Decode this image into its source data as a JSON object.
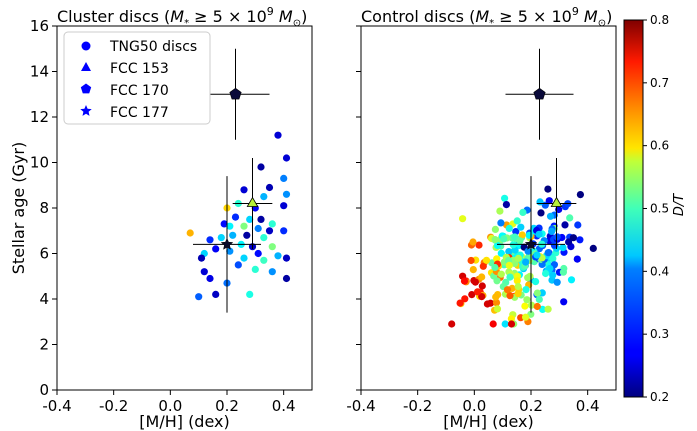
{
  "chart_data": [
    {
      "type": "scatter",
      "title_text": "Cluster discs (",
      "title_math": "M",
      "title_sub": "*",
      "title_rest": " ≥ 5 × 10",
      "title_exp": "9",
      "title_unit": " M",
      "title_unit_sub": "⊙",
      "title_close": ")",
      "xlabel": "[M/H] (dex)",
      "ylabel": "Stellar age (Gyr)",
      "xlim": [
        -0.4,
        0.5
      ],
      "ylim": [
        0,
        16
      ],
      "xticks": [
        "-0.4",
        "-0.2",
        "0.0",
        "0.2",
        "0.4"
      ],
      "xtick_values": [
        -0.4,
        -0.2,
        0.0,
        0.2,
        0.4
      ],
      "yticks": [
        "0",
        "2",
        "4",
        "6",
        "8",
        "10",
        "12",
        "14",
        "16"
      ],
      "ytick_values": [
        0,
        2,
        4,
        6,
        8,
        10,
        12,
        14,
        16
      ],
      "legend": {
        "placement": "top-left",
        "entries": [
          {
            "label": "TNG50 discs",
            "marker": "circle"
          },
          {
            "label": "FCC 153",
            "marker": "triangle"
          },
          {
            "label": "FCC 170",
            "marker": "pentagon"
          },
          {
            "label": "FCC 177",
            "marker": "star"
          }
        ],
        "color": "#0000ff"
      },
      "points": [
        {
          "x": 0.38,
          "y": 11.2,
          "dt": 0.25
        },
        {
          "x": 0.41,
          "y": 10.2,
          "dt": 0.25
        },
        {
          "x": 0.32,
          "y": 9.8,
          "dt": 0.22
        },
        {
          "x": 0.4,
          "y": 9.3,
          "dt": 0.35
        },
        {
          "x": 0.26,
          "y": 8.8,
          "dt": 0.25
        },
        {
          "x": 0.35,
          "y": 8.9,
          "dt": 0.23
        },
        {
          "x": 0.33,
          "y": 8.5,
          "dt": 0.38
        },
        {
          "x": 0.41,
          "y": 8.6,
          "dt": 0.36
        },
        {
          "x": 0.24,
          "y": 8.2,
          "dt": 0.45
        },
        {
          "x": 0.2,
          "y": 8.0,
          "dt": 0.6
        },
        {
          "x": 0.3,
          "y": 8.0,
          "dt": 0.27
        },
        {
          "x": 0.4,
          "y": 8.1,
          "dt": 0.25
        },
        {
          "x": 0.23,
          "y": 7.6,
          "dt": 0.3
        },
        {
          "x": 0.28,
          "y": 7.5,
          "dt": 0.4
        },
        {
          "x": 0.32,
          "y": 7.5,
          "dt": 0.22
        },
        {
          "x": 0.36,
          "y": 7.3,
          "dt": 0.45
        },
        {
          "x": 0.19,
          "y": 7.3,
          "dt": 0.28
        },
        {
          "x": 0.21,
          "y": 7.2,
          "dt": 0.42
        },
        {
          "x": 0.26,
          "y": 7.2,
          "dt": 0.5
        },
        {
          "x": 0.31,
          "y": 7.1,
          "dt": 0.35
        },
        {
          "x": 0.35,
          "y": 7.0,
          "dt": 0.24
        },
        {
          "x": 0.4,
          "y": 7.0,
          "dt": 0.3
        },
        {
          "x": 0.22,
          "y": 6.8,
          "dt": 0.38
        },
        {
          "x": 0.27,
          "y": 6.8,
          "dt": 0.22
        },
        {
          "x": 0.33,
          "y": 6.7,
          "dt": 0.45
        },
        {
          "x": 0.18,
          "y": 6.7,
          "dt": 0.4
        },
        {
          "x": 0.07,
          "y": 6.9,
          "dt": 0.62
        },
        {
          "x": 0.14,
          "y": 6.6,
          "dt": 0.3
        },
        {
          "x": 0.25,
          "y": 6.4,
          "dt": 0.42
        },
        {
          "x": 0.29,
          "y": 6.3,
          "dt": 0.24
        },
        {
          "x": 0.36,
          "y": 6.3,
          "dt": 0.5
        },
        {
          "x": 0.16,
          "y": 6.2,
          "dt": 0.27
        },
        {
          "x": 0.21,
          "y": 6.1,
          "dt": 0.36
        },
        {
          "x": 0.31,
          "y": 6.0,
          "dt": 0.28
        },
        {
          "x": 0.12,
          "y": 6.0,
          "dt": 0.4
        },
        {
          "x": 0.38,
          "y": 5.9,
          "dt": 0.38
        },
        {
          "x": 0.11,
          "y": 5.8,
          "dt": 0.23
        },
        {
          "x": 0.26,
          "y": 5.8,
          "dt": 0.4
        },
        {
          "x": 0.33,
          "y": 5.7,
          "dt": 0.46
        },
        {
          "x": 0.41,
          "y": 5.8,
          "dt": 0.24
        },
        {
          "x": 0.24,
          "y": 5.5,
          "dt": 0.32
        },
        {
          "x": 0.3,
          "y": 5.3,
          "dt": 0.45
        },
        {
          "x": 0.12,
          "y": 5.2,
          "dt": 0.25
        },
        {
          "x": 0.36,
          "y": 5.2,
          "dt": 0.36
        },
        {
          "x": 0.14,
          "y": 4.9,
          "dt": 0.26
        },
        {
          "x": 0.41,
          "y": 4.9,
          "dt": 0.22
        },
        {
          "x": 0.2,
          "y": 4.7,
          "dt": 0.34
        },
        {
          "x": 0.16,
          "y": 4.2,
          "dt": 0.24
        },
        {
          "x": 0.1,
          "y": 4.1,
          "dt": 0.33
        },
        {
          "x": 0.28,
          "y": 4.2,
          "dt": 0.44
        }
      ],
      "errorbars": [
        {
          "name": "FCC 170",
          "marker": "pentagon",
          "x": 0.23,
          "y": 13.0,
          "xerr": 0.12,
          "yerr": 2.0,
          "color": "#0a0a3a"
        },
        {
          "name": "FCC 153",
          "marker": "triangle",
          "x": 0.29,
          "y": 8.2,
          "xerr": 0.07,
          "yerr": 2.0,
          "color": "#b8f03a"
        },
        {
          "name": "FCC 177",
          "marker": "star",
          "x": 0.2,
          "y": 6.4,
          "xerr": 0.12,
          "yerr": 3.0,
          "color": "#0a0a2a"
        }
      ]
    },
    {
      "type": "scatter",
      "title_text": "Control discs (",
      "title_math": "M",
      "title_sub": "*",
      "title_rest": " ≥ 5 × 10",
      "title_exp": "9",
      "title_unit": " M",
      "title_unit_sub": "⊙",
      "title_close": ")",
      "xlabel": "[M/H] (dex)",
      "xlim": [
        -0.4,
        0.5
      ],
      "ylim": [
        0,
        16
      ],
      "xticks": [
        "-0.4",
        "-0.2",
        "0.0",
        "0.2",
        "0.4"
      ],
      "xtick_values": [
        -0.4,
        -0.2,
        0.0,
        0.2,
        0.4
      ],
      "ytick_values": [
        0,
        2,
        4,
        6,
        8,
        10,
        12,
        14,
        16
      ],
      "n_points": 260,
      "point_cloud": {
        "metallicity_range": [
          -0.08,
          0.42
        ],
        "age_range": [
          2.9,
          10.4
        ],
        "dt_range": [
          0.2,
          0.75
        ]
      },
      "errorbars": [
        {
          "name": "FCC 170",
          "marker": "pentagon",
          "x": 0.23,
          "y": 13.0,
          "xerr": 0.12,
          "yerr": 2.0,
          "color": "#0a0a3a"
        },
        {
          "name": "FCC 153",
          "marker": "triangle",
          "x": 0.29,
          "y": 8.2,
          "xerr": 0.07,
          "yerr": 2.0,
          "color": "#b8f03a"
        },
        {
          "name": "FCC 177",
          "marker": "star",
          "x": 0.2,
          "y": 6.4,
          "xerr": 0.12,
          "yerr": 3.0,
          "color": "#0a0a2a"
        }
      ]
    }
  ],
  "colorbar": {
    "label": "D/T",
    "range": [
      0.2,
      0.8
    ],
    "ticks": [
      "0.2",
      "0.3",
      "0.4",
      "0.5",
      "0.6",
      "0.7",
      "0.8"
    ],
    "tick_values": [
      0.2,
      0.3,
      0.4,
      0.5,
      0.6,
      0.7,
      0.8
    ],
    "colormap": "jet"
  }
}
